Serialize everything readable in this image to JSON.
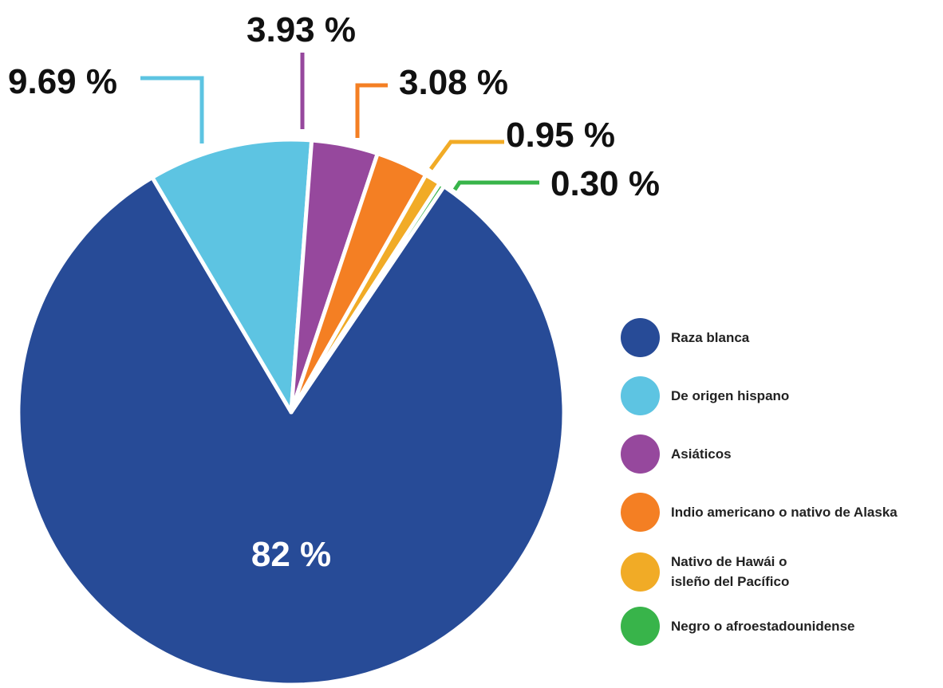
{
  "chart_data": {
    "type": "pie",
    "slices": [
      {
        "name": "Raza blanca",
        "value": 82,
        "label": "82 %",
        "color": "#274b97"
      },
      {
        "name": "De origen hispano",
        "value": 9.69,
        "label": "9.69 %",
        "color": "#5dc4e2"
      },
      {
        "name": "Asiáticos",
        "value": 3.93,
        "label": "3.93 %",
        "color": "#96489d"
      },
      {
        "name": "Indio americano o nativo de Alaska",
        "value": 3.08,
        "label": "3.08 %",
        "color": "#f47f23"
      },
      {
        "name": "Nativo de Hawái o\nisleño del Pacífico",
        "value": 0.95,
        "label": "0.95 %",
        "color": "#f1ab26"
      },
      {
        "name": "Negro o afroestadounidense",
        "value": 0.3,
        "label": "0.30 %",
        "color": "#38b44a"
      }
    ],
    "legend_position": "right"
  }
}
